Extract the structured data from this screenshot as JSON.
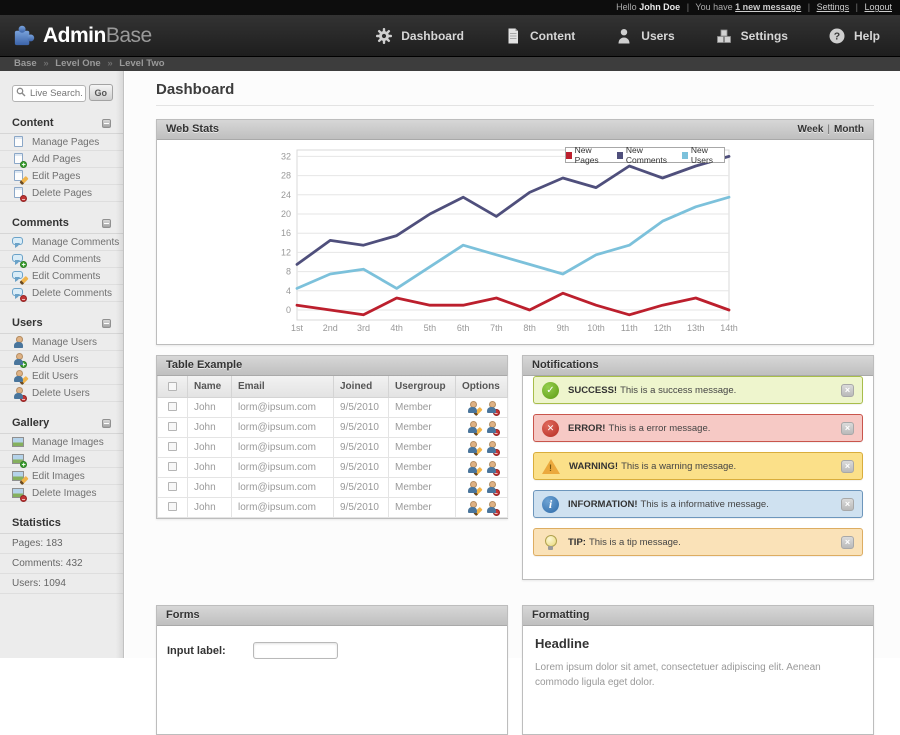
{
  "topbar": {
    "greeting": "Hello",
    "user": "John Doe",
    "sep": "|",
    "you_have": "You have",
    "message_link": "1 new message",
    "settings_link": "Settings",
    "logout_link": "Logout"
  },
  "header": {
    "logo_bold": "Admin",
    "logo_light": "Base",
    "nav": [
      {
        "label": "Dashboard",
        "icon": "gear-icon"
      },
      {
        "label": "Content",
        "icon": "document-icon"
      },
      {
        "label": "Users",
        "icon": "person-icon"
      },
      {
        "label": "Settings",
        "icon": "boxes-icon"
      },
      {
        "label": "Help",
        "icon": "help-circle-icon"
      }
    ]
  },
  "breadcrumb": {
    "sep": "»",
    "items": [
      "Base",
      "Level One",
      "Level Two"
    ]
  },
  "sidebar": {
    "search": {
      "placeholder": "Live Search...",
      "go": "Go",
      "icon": "search-icon"
    },
    "sections": [
      {
        "title": "Content",
        "items": [
          {
            "label": "Manage Pages",
            "icon": "page-icon"
          },
          {
            "label": "Add Pages",
            "icon": "page-add-icon"
          },
          {
            "label": "Edit Pages",
            "icon": "page-edit-icon"
          },
          {
            "label": "Delete Pages",
            "icon": "page-delete-icon"
          }
        ]
      },
      {
        "title": "Comments",
        "items": [
          {
            "label": "Manage Comments",
            "icon": "comment-icon"
          },
          {
            "label": "Add Comments",
            "icon": "comment-add-icon"
          },
          {
            "label": "Edit Comments",
            "icon": "comment-edit-icon"
          },
          {
            "label": "Delete Comments",
            "icon": "comment-delete-icon"
          }
        ]
      },
      {
        "title": "Users",
        "items": [
          {
            "label": "Manage Users",
            "icon": "user-icon"
          },
          {
            "label": "Add Users",
            "icon": "user-add-icon"
          },
          {
            "label": "Edit Users",
            "icon": "user-edit-icon"
          },
          {
            "label": "Delete Users",
            "icon": "user-delete-icon"
          }
        ]
      },
      {
        "title": "Gallery",
        "items": [
          {
            "label": "Manage Images",
            "icon": "image-icon"
          },
          {
            "label": "Add Images",
            "icon": "image-add-icon"
          },
          {
            "label": "Edit Images",
            "icon": "image-edit-icon"
          },
          {
            "label": "Delete Images",
            "icon": "image-delete-icon"
          }
        ]
      }
    ],
    "statistics": {
      "title": "Statistics",
      "items": [
        "Pages: 183",
        "Comments: 432",
        "Users: 1094"
      ]
    }
  },
  "chart_data": {
    "type": "line",
    "title": "Web Stats",
    "x_labels": [
      "1st",
      "2nd",
      "3rd",
      "4th",
      "5th",
      "6th",
      "7th",
      "8th",
      "9th",
      "10th",
      "11th",
      "12th",
      "13th",
      "14th"
    ],
    "yticks": [
      0,
      4,
      8,
      12,
      16,
      20,
      24,
      28,
      32
    ],
    "ylim": [
      -2,
      34
    ],
    "grid": true,
    "legend_position": "top-right",
    "series": [
      {
        "name": "New Pages",
        "color": "#bc1f2d",
        "values": [
          1,
          0,
          -1,
          2.5,
          1,
          1,
          2.5,
          0,
          3.5,
          1,
          -1,
          1,
          2.5,
          0
        ]
      },
      {
        "name": "New Comments",
        "color": "#4f4f7c",
        "values": [
          9.5,
          14.5,
          13.5,
          15.5,
          20,
          23.5,
          19.5,
          24.5,
          27.5,
          25.5,
          30,
          27.5,
          30,
          32
        ]
      },
      {
        "name": "New Users",
        "color": "#7cc1db",
        "values": [
          4.5,
          7.5,
          8.5,
          4.5,
          9,
          13.5,
          11.5,
          9.5,
          7.5,
          11.5,
          13.5,
          18.5,
          21.5,
          23.5
        ]
      }
    ]
  },
  "main": {
    "page_title": "Dashboard",
    "webstats": {
      "title": "Web Stats",
      "week": "Week",
      "sep": "|",
      "month": "Month"
    },
    "table_panel": {
      "title": "Table Example",
      "columns": [
        "Name",
        "Email",
        "Joined",
        "Usergroup",
        "Options"
      ],
      "rows": [
        {
          "name": "John",
          "email": "lorm@ipsum.com",
          "joined": "9/5/2010",
          "usergroup": "Member"
        },
        {
          "name": "John",
          "email": "lorm@ipsum.com",
          "joined": "9/5/2010",
          "usergroup": "Member"
        },
        {
          "name": "John",
          "email": "lorm@ipsum.com",
          "joined": "9/5/2010",
          "usergroup": "Member"
        },
        {
          "name": "John",
          "email": "lorm@ipsum.com",
          "joined": "9/5/2010",
          "usergroup": "Member"
        },
        {
          "name": "John",
          "email": "lorm@ipsum.com",
          "joined": "9/5/2010",
          "usergroup": "Member"
        },
        {
          "name": "John",
          "email": "lorm@ipsum.com",
          "joined": "9/5/2010",
          "usergroup": "Member"
        }
      ]
    },
    "notifications": {
      "title": "Notifications",
      "items": [
        {
          "type": "success",
          "bold": "SUCCESS!",
          "text": "This is a success message.",
          "icon": "check-circle-icon"
        },
        {
          "type": "error",
          "bold": "ERROR!",
          "text": "This is a error message.",
          "icon": "cross-circle-icon"
        },
        {
          "type": "warning",
          "bold": "WARNING!",
          "text": "This is a warning message.",
          "icon": "warning-triangle-icon"
        },
        {
          "type": "info",
          "bold": "INFORMATION!",
          "text": "This is a informative message.",
          "icon": "info-circle-icon"
        },
        {
          "type": "tip",
          "bold": "TIP:",
          "text": "This is a tip message.",
          "icon": "lightbulb-icon"
        }
      ]
    },
    "forms_panel": {
      "title": "Forms",
      "input_label": "Input label:",
      "input_value": ""
    },
    "formatting_panel": {
      "title": "Formatting",
      "headline": "Headline",
      "paragraph": "Lorem ipsum dolor sit amet, consectetuer adipiscing elit. Aenean commodo ligula eget dolor."
    }
  },
  "colors": {
    "brand_blue": "#4d7ec1",
    "pages_red": "#bc1f2d",
    "comments_purple": "#4f4f7c",
    "users_blue": "#7cc1db",
    "success_green": "#6fae1f",
    "error_red": "#cf3f35",
    "warning_yellow": "#eba93d",
    "info_blue": "#3c79b8"
  }
}
